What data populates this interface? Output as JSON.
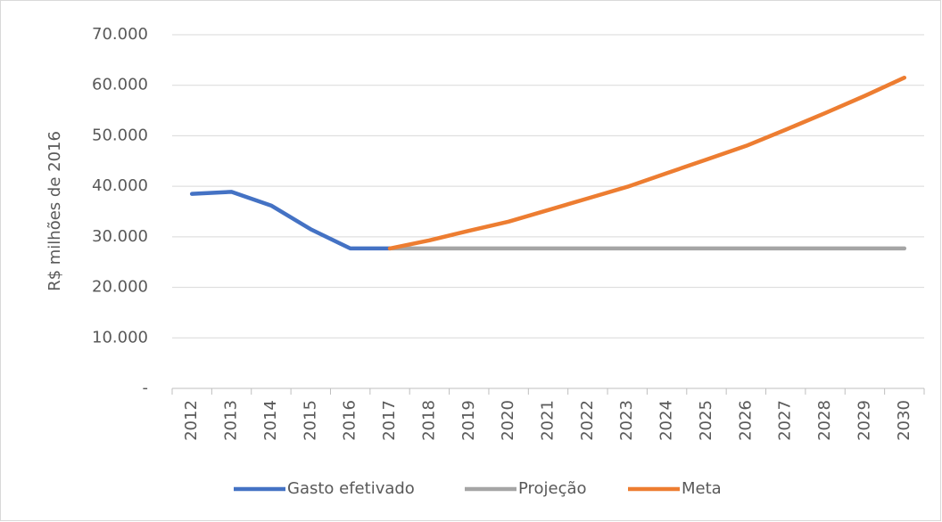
{
  "chart_data": {
    "type": "line",
    "ylabel": "R$ milhões de 2016",
    "categories": [
      "2012",
      "2013",
      "2014",
      "2015",
      "2016",
      "2017",
      "2018",
      "2019",
      "2020",
      "2021",
      "2022",
      "2023",
      "2024",
      "2025",
      "2026",
      "2027",
      "2028",
      "2029",
      "2030"
    ],
    "series": [
      {
        "name": "Gasto efetivado",
        "color": "#4472c4",
        "values": [
          38500,
          38900,
          36200,
          31500,
          27700,
          27700,
          null,
          null,
          null,
          null,
          null,
          null,
          null,
          null,
          null,
          null,
          null,
          null,
          null
        ]
      },
      {
        "name": "Projeção",
        "color": "#a5a5a5",
        "values": [
          null,
          null,
          null,
          null,
          null,
          27700,
          27700,
          27700,
          27700,
          27700,
          27700,
          27700,
          27700,
          27700,
          27700,
          27700,
          27700,
          27700,
          27700
        ]
      },
      {
        "name": "Meta",
        "color": "#ed7d31",
        "values": [
          null,
          null,
          null,
          null,
          null,
          27700,
          29300,
          31200,
          33000,
          35300,
          37600,
          39900,
          42600,
          45300,
          48000,
          51200,
          54500,
          57900,
          61500
        ]
      }
    ],
    "ylim": [
      0,
      70000
    ],
    "yticks": [
      {
        "value": 0,
        "label": "-"
      },
      {
        "value": 10000,
        "label": "10.000"
      },
      {
        "value": 20000,
        "label": "20.000"
      },
      {
        "value": 30000,
        "label": "30.000"
      },
      {
        "value": 40000,
        "label": "40.000"
      },
      {
        "value": 50000,
        "label": "50.000"
      },
      {
        "value": 60000,
        "label": "60.000"
      },
      {
        "value": 70000,
        "label": "70.000"
      }
    ],
    "grid": true
  }
}
